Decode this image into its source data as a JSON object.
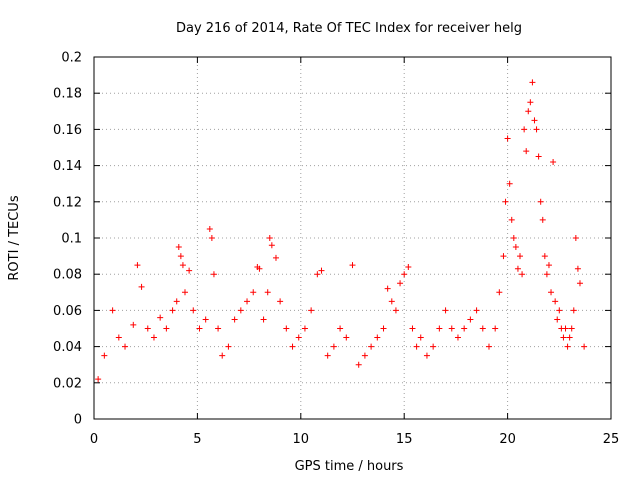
{
  "chart_data": {
    "type": "scatter",
    "title": "Day 216 of 2014, Rate Of TEC Index for receiver helg",
    "xlabel": "GPS time / hours",
    "ylabel": "ROTI / TECUs",
    "xlim": [
      0,
      25
    ],
    "ylim": [
      0,
      0.2
    ],
    "xticks": [
      0,
      5,
      10,
      15,
      20,
      25
    ],
    "yticks": [
      0,
      0.02,
      0.04,
      0.06,
      0.08,
      0.1,
      0.12,
      0.14,
      0.16,
      0.18,
      0.2
    ],
    "xtick_labels": [
      "0",
      "5",
      "10",
      "15",
      "20",
      "25"
    ],
    "ytick_labels": [
      "0",
      "0.02",
      "0.04",
      "0.06",
      "0.08",
      "0.1",
      "0.12",
      "0.14",
      "0.16",
      "0.18",
      "0.2"
    ],
    "grid": true,
    "marker": "+",
    "color": "#ff0000",
    "series": [
      {
        "name": "ROTI",
        "x": [
          0.2,
          0.5,
          0.9,
          1.2,
          1.5,
          1.9,
          2.1,
          2.3,
          2.6,
          2.9,
          3.2,
          3.5,
          3.8,
          4.0,
          4.1,
          4.2,
          4.3,
          4.4,
          4.6,
          4.8,
          5.1,
          5.4,
          5.6,
          5.7,
          5.8,
          6.0,
          6.2,
          6.5,
          6.8,
          7.1,
          7.4,
          7.7,
          7.9,
          8.0,
          8.2,
          8.4,
          8.5,
          8.6,
          8.8,
          9.0,
          9.3,
          9.6,
          9.9,
          10.2,
          10.5,
          10.8,
          11.0,
          11.3,
          11.6,
          11.9,
          12.2,
          12.5,
          12.8,
          13.1,
          13.4,
          13.7,
          14.0,
          14.2,
          14.4,
          14.6,
          14.8,
          15.0,
          15.2,
          15.4,
          15.6,
          15.8,
          16.1,
          16.4,
          16.7,
          17.0,
          17.3,
          17.6,
          17.9,
          18.2,
          18.5,
          18.8,
          19.1,
          19.4,
          19.6,
          19.8,
          19.9,
          20.0,
          20.1,
          20.2,
          20.3,
          20.4,
          20.5,
          20.6,
          20.7,
          20.8,
          20.9,
          21.0,
          21.1,
          21.2,
          21.3,
          21.4,
          21.5,
          21.6,
          21.7,
          21.8,
          21.9,
          22.0,
          22.1,
          22.2,
          22.3,
          22.4,
          22.5,
          22.6,
          22.7,
          22.8,
          22.9,
          23.0,
          23.1,
          23.2,
          23.3,
          23.4,
          23.5,
          23.7
        ],
        "y": [
          0.022,
          0.035,
          0.06,
          0.045,
          0.04,
          0.052,
          0.085,
          0.073,
          0.05,
          0.045,
          0.056,
          0.05,
          0.06,
          0.065,
          0.095,
          0.09,
          0.085,
          0.07,
          0.082,
          0.06,
          0.05,
          0.055,
          0.105,
          0.1,
          0.08,
          0.05,
          0.035,
          0.04,
          0.055,
          0.06,
          0.065,
          0.07,
          0.084,
          0.083,
          0.055,
          0.07,
          0.1,
          0.096,
          0.089,
          0.065,
          0.05,
          0.04,
          0.045,
          0.05,
          0.06,
          0.08,
          0.082,
          0.035,
          0.04,
          0.05,
          0.045,
          0.085,
          0.03,
          0.035,
          0.04,
          0.045,
          0.05,
          0.072,
          0.065,
          0.06,
          0.075,
          0.08,
          0.084,
          0.05,
          0.04,
          0.045,
          0.035,
          0.04,
          0.05,
          0.06,
          0.05,
          0.045,
          0.05,
          0.055,
          0.06,
          0.05,
          0.04,
          0.05,
          0.07,
          0.09,
          0.12,
          0.155,
          0.13,
          0.11,
          0.1,
          0.095,
          0.083,
          0.09,
          0.08,
          0.16,
          0.148,
          0.17,
          0.175,
          0.186,
          0.165,
          0.16,
          0.145,
          0.12,
          0.11,
          0.09,
          0.08,
          0.085,
          0.07,
          0.142,
          0.065,
          0.055,
          0.06,
          0.05,
          0.045,
          0.05,
          0.04,
          0.045,
          0.05,
          0.06,
          0.1,
          0.083,
          0.075,
          0.04
        ]
      }
    ]
  }
}
